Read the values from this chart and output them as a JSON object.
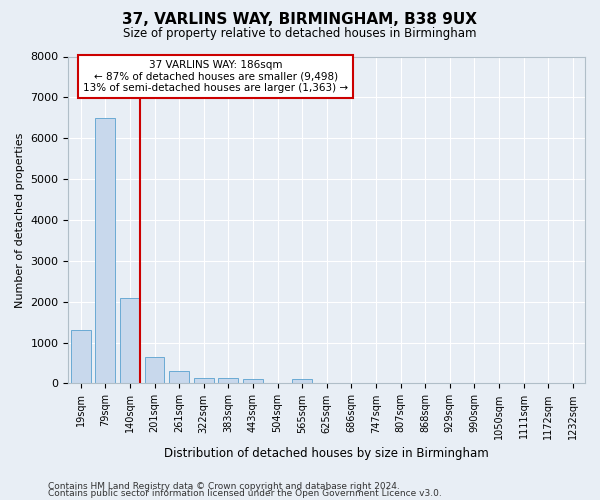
{
  "title": "37, VARLINS WAY, BIRMINGHAM, B38 9UX",
  "subtitle": "Size of property relative to detached houses in Birmingham",
  "xlabel": "Distribution of detached houses by size in Birmingham",
  "ylabel": "Number of detached properties",
  "bar_color": "#c8d8ec",
  "bar_edge_color": "#6aaad4",
  "background_color": "#e8eef5",
  "grid_color": "#ffffff",
  "categories": [
    "19sqm",
    "79sqm",
    "140sqm",
    "201sqm",
    "261sqm",
    "322sqm",
    "383sqm",
    "443sqm",
    "504sqm",
    "565sqm",
    "625sqm",
    "686sqm",
    "747sqm",
    "807sqm",
    "868sqm",
    "929sqm",
    "990sqm",
    "1050sqm",
    "1111sqm",
    "1172sqm",
    "1232sqm"
  ],
  "values": [
    1300,
    6500,
    2100,
    650,
    300,
    130,
    130,
    100,
    0,
    100,
    0,
    0,
    0,
    0,
    0,
    0,
    0,
    0,
    0,
    0,
    0
  ],
  "red_line_x": 2.43,
  "annotation_line1": "37 VARLINS WAY: 186sqm",
  "annotation_line2": "← 87% of detached houses are smaller (9,498)",
  "annotation_line3": "13% of semi-detached houses are larger (1,363) →",
  "annotation_box_color": "#ffffff",
  "annotation_border_color": "#cc0000",
  "ylim": [
    0,
    8000
  ],
  "yticks": [
    0,
    1000,
    2000,
    3000,
    4000,
    5000,
    6000,
    7000,
    8000
  ],
  "footer1": "Contains HM Land Registry data © Crown copyright and database right 2024.",
  "footer2": "Contains public sector information licensed under the Open Government Licence v3.0."
}
